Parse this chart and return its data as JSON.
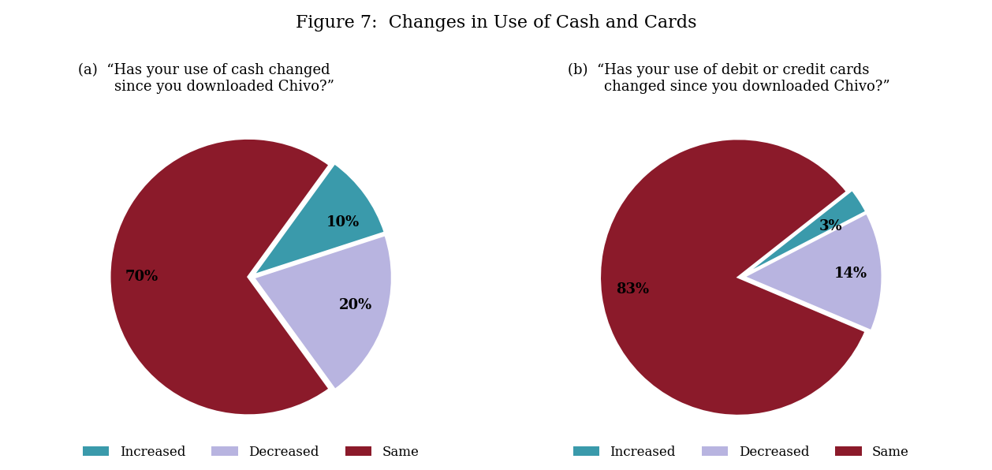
{
  "title": "Figure 7:  Changes in Use of Cash and Cards",
  "title_fontsize": 16,
  "subtitle_a": "(a)  “Has your use of cash changed\n        since you downloaded Chivo?”",
  "subtitle_b": "(b)  “Has your use of debit or credit cards\n        changed since you downloaded Chivo?”",
  "subtitle_fontsize": 13,
  "chart_a": {
    "values": [
      70,
      10,
      20
    ],
    "labels": [
      "70%",
      "10%",
      "20%"
    ],
    "colors": [
      "#8b1a2a",
      "#3a9aab",
      "#b8b4e0"
    ],
    "startangle": -54,
    "explode": [
      0.02,
      0.02,
      0.02
    ]
  },
  "chart_b": {
    "values": [
      83,
      3,
      14
    ],
    "labels": [
      "83%",
      "3%",
      "14%"
    ],
    "colors": [
      "#8b1a2a",
      "#3a9aab",
      "#b8b4e0"
    ],
    "startangle": -23,
    "explode": [
      0.02,
      0.02,
      0.02
    ]
  },
  "legend_labels": [
    "Increased",
    "Decreased",
    "Same"
  ],
  "legend_colors": [
    "#3a9aab",
    "#b8b4e0",
    "#8b1a2a"
  ],
  "background_color": "#ffffff",
  "label_fontsize": 13
}
